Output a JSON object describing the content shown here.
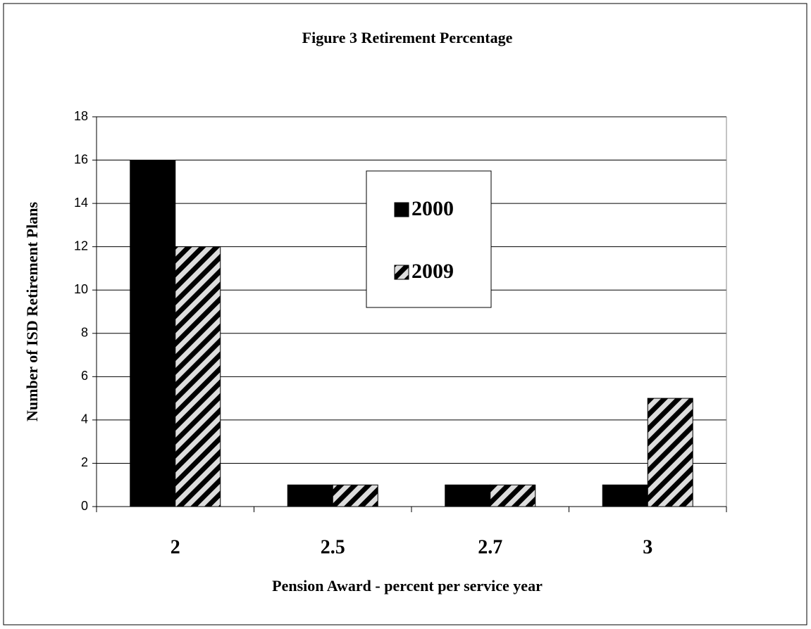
{
  "chart_data": {
    "type": "bar",
    "title": "Figure 3  Retirement Percentage",
    "x_label": "Pension Award - percent per service year",
    "y_label": "Number of ISD Retirement Plans",
    "categories": [
      "2",
      "2.5",
      "2.7",
      "3"
    ],
    "series": [
      {
        "name": "2000",
        "color": "#000000",
        "fill": "solid",
        "values": [
          16,
          1,
          1,
          1
        ]
      },
      {
        "name": "2009",
        "color": "#000000",
        "fill": "hatch",
        "values": [
          12,
          1,
          1,
          5
        ]
      }
    ],
    "ylim": [
      0,
      18
    ],
    "yticks": [
      0,
      2,
      4,
      6,
      8,
      10,
      12,
      14,
      16,
      18
    ],
    "grid": true,
    "legend": "center"
  }
}
